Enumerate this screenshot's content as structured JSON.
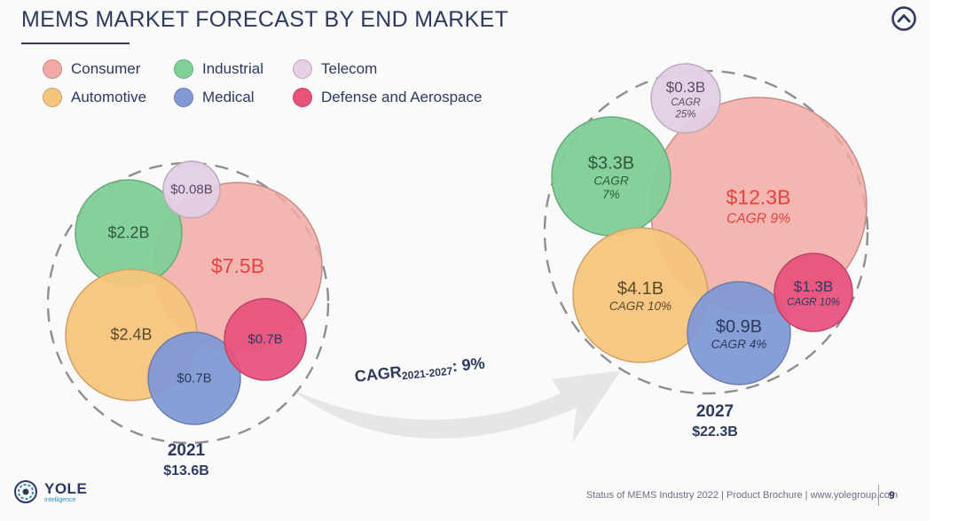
{
  "title": "MEMS MARKET FORECAST BY END MARKET",
  "colors": {
    "title": "#2d3a5e",
    "consumer": "#f2a9a3",
    "industrial": "#7fcf96",
    "telecom": "#e4cfe4",
    "automotive": "#f5c57d",
    "medical": "#8199d4",
    "defense": "#e8537e",
    "consumer_text": "#e8423f"
  },
  "legend": [
    {
      "label": "Consumer",
      "key": "consumer"
    },
    {
      "label": "Industrial",
      "key": "industrial"
    },
    {
      "label": "Telecom",
      "key": "telecom"
    },
    {
      "label": "Automotive",
      "key": "automotive"
    },
    {
      "label": "Medical",
      "key": "medical"
    },
    {
      "label": "Defense and Aerospace",
      "key": "defense"
    }
  ],
  "chart_data": [
    {
      "type": "bubble",
      "year": "2021",
      "total_label": "$13.6B",
      "series": [
        {
          "name": "Consumer",
          "key": "consumer",
          "value": 7.5,
          "label": "$7.5B"
        },
        {
          "name": "Automotive",
          "key": "automotive",
          "value": 2.4,
          "label": "$2.4B"
        },
        {
          "name": "Industrial",
          "key": "industrial",
          "value": 2.2,
          "label": "$2.2B"
        },
        {
          "name": "Medical",
          "key": "medical",
          "value": 0.7,
          "label": "$0.7B"
        },
        {
          "name": "Defense and Aerospace",
          "key": "defense",
          "value": 0.7,
          "label": "$0.7B"
        },
        {
          "name": "Telecom",
          "key": "telecom",
          "value": 0.08,
          "label": "$0.08B"
        }
      ]
    },
    {
      "type": "bubble",
      "year": "2027",
      "total_label": "$22.3B",
      "series": [
        {
          "name": "Consumer",
          "key": "consumer",
          "value": 12.3,
          "label": "$12.3B",
          "cagr": "CAGR 9%"
        },
        {
          "name": "Automotive",
          "key": "automotive",
          "value": 4.1,
          "label": "$4.1B",
          "cagr": "CAGR 10%"
        },
        {
          "name": "Industrial",
          "key": "industrial",
          "value": 3.3,
          "label": "$3.3B",
          "cagr": "CAGR\n7%"
        },
        {
          "name": "Defense and Aerospace",
          "key": "defense",
          "value": 1.3,
          "label": "$1.3B",
          "cagr": "CAGR 10%"
        },
        {
          "name": "Medical",
          "key": "medical",
          "value": 0.9,
          "label": "$0.9B",
          "cagr": "CAGR 4%"
        },
        {
          "name": "Telecom",
          "key": "telecom",
          "value": 0.3,
          "label": "$0.3B",
          "cagr": "CAGR\n25%"
        }
      ]
    }
  ],
  "overall_cagr": {
    "prefix": "CAGR",
    "range": "2021-2027",
    "suffix": ": 9%"
  },
  "logo": {
    "name": "YOLE",
    "sub": "Intelligence",
    "icon": "yole-logo-icon"
  },
  "footer": "Status of MEMS Industry 2022 | Product Brochure | www.yolegroup.com",
  "page_number": "9",
  "nav_icon": "chevron-up-circle-icon"
}
